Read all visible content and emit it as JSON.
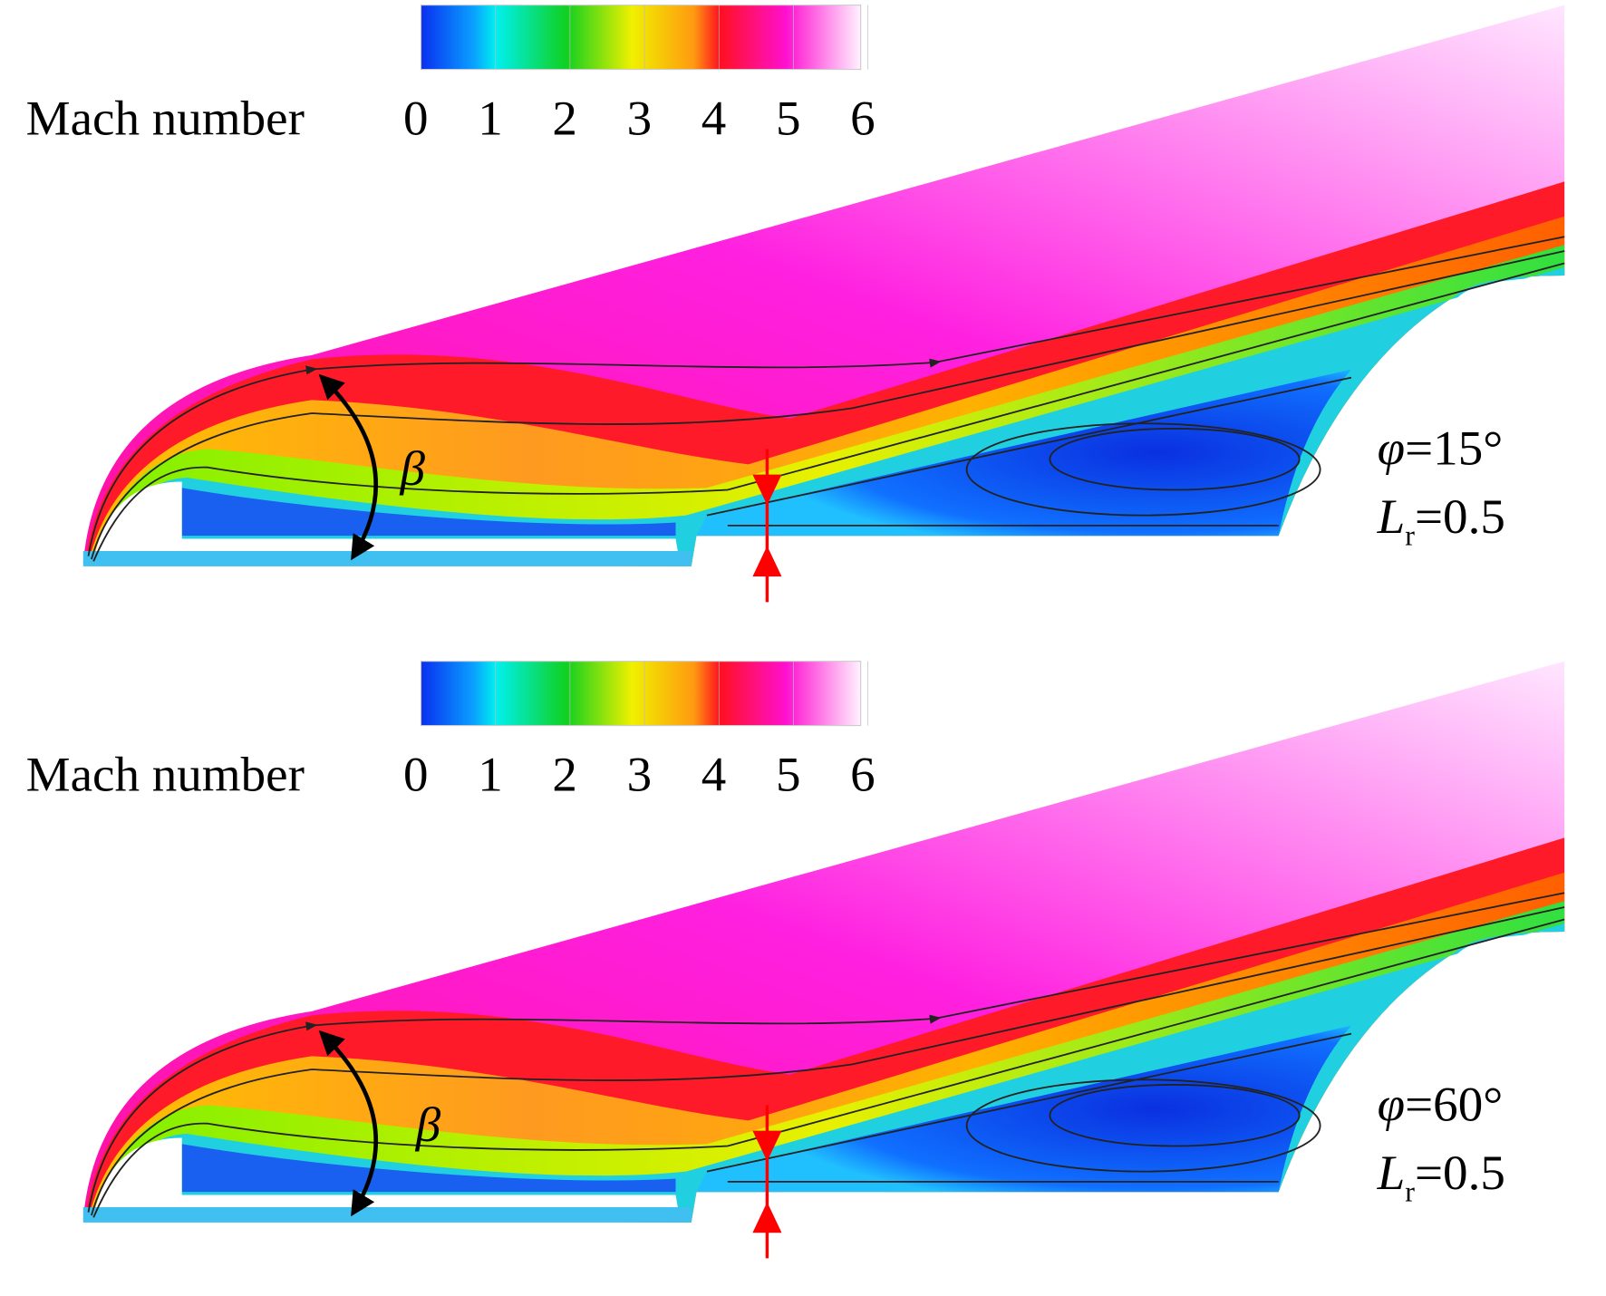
{
  "panels": [
    {
      "colorbar": {
        "label": "Mach number",
        "ticks": [
          0,
          1,
          2,
          3,
          4,
          5,
          6
        ]
      },
      "angle_label": "β",
      "phi": {
        "symbol": "φ",
        "value": "=15°"
      },
      "length": {
        "symbol": "L",
        "subscript": "r",
        "value": "=0.5"
      }
    },
    {
      "colorbar": {
        "label": "Mach number",
        "ticks": [
          0,
          1,
          2,
          3,
          4,
          5,
          6
        ]
      },
      "angle_label": "β",
      "phi": {
        "symbol": "φ",
        "value": "=60°"
      },
      "length": {
        "symbol": "L",
        "subscript": "r",
        "value": "=0.5"
      }
    }
  ]
}
